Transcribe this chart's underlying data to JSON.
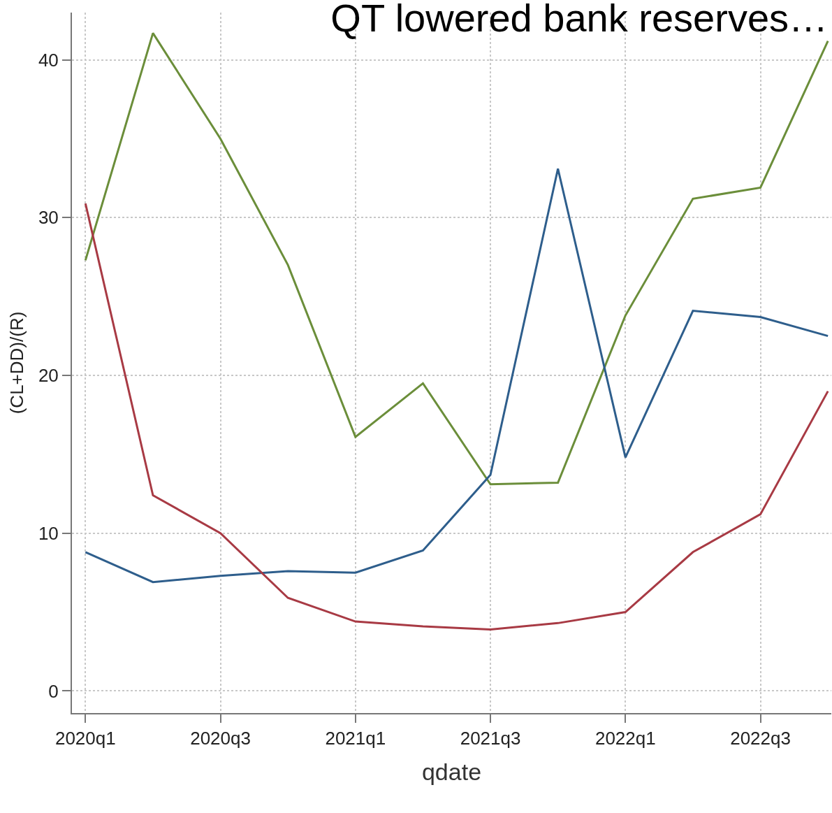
{
  "chart_data": {
    "type": "line",
    "title": "QT lowered bank reserves…",
    "xlabel": "qdate",
    "ylabel": "(CL+DD)/(R)",
    "categories": [
      "2020q1",
      null,
      "2020q3",
      null,
      "2021q1",
      null,
      "2021q3",
      null,
      "2022q1",
      null,
      "2022q3",
      null
    ],
    "series": [
      {
        "color": "#6b8e3a",
        "values": [
          27.3,
          41.7,
          35.0,
          27.0,
          16.1,
          19.5,
          13.1,
          13.2,
          23.8,
          31.2,
          31.9,
          41.2
        ]
      },
      {
        "color": "#2e5e8c",
        "values": [
          8.8,
          6.9,
          7.3,
          7.6,
          7.5,
          8.9,
          13.7,
          33.1,
          14.8,
          24.1,
          23.7,
          22.5
        ]
      },
      {
        "color": "#a83a44",
        "values": [
          30.9,
          12.4,
          10.0,
          5.9,
          4.4,
          4.1,
          3.9,
          4.3,
          5.0,
          8.8,
          11.2,
          19.0
        ]
      }
    ],
    "ylim": [
      -1.4,
      43
    ],
    "yticks": [
      0,
      10,
      20,
      30,
      40
    ],
    "grid": true,
    "line_style": "solid"
  }
}
